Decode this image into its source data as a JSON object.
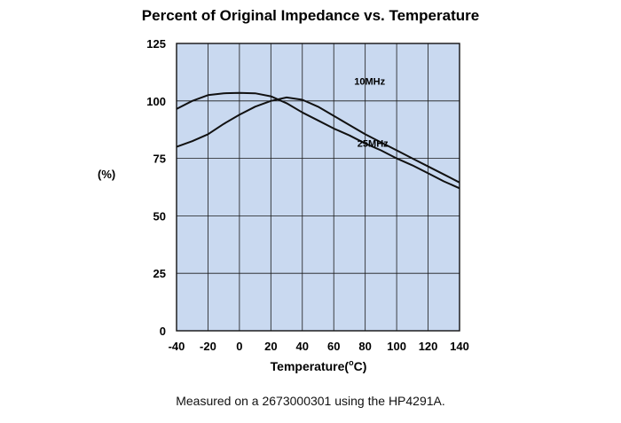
{
  "chart_data": {
    "type": "line",
    "title": "Percent of Original Impedance vs. Temperature",
    "ylabel": "(%)",
    "xlabel": "Temperature(",
    "xlabel_sup": "o",
    "xlabel_unit": "C)",
    "xlim": [
      -40,
      140
    ],
    "ylim": [
      0,
      125
    ],
    "xticks": [
      -40,
      -20,
      0,
      20,
      40,
      60,
      80,
      100,
      120,
      140
    ],
    "yticks": [
      0,
      25,
      50,
      75,
      100,
      125
    ],
    "grid": true,
    "plot_background": "#c9d9f0",
    "series": [
      {
        "name": "10MHz",
        "label_at": [
          73,
          107
        ],
        "x": [
          -40,
          -30,
          -20,
          -10,
          0,
          10,
          20,
          30,
          40,
          50,
          60,
          70,
          80,
          90,
          100,
          110,
          120,
          130,
          140
        ],
        "y": [
          96.5,
          100,
          102.5,
          103.3,
          103.5,
          103.3,
          102,
          99,
          95,
          91.5,
          88,
          85,
          81.5,
          78.5,
          75,
          72,
          68.5,
          65,
          62
        ]
      },
      {
        "name": "25MHz",
        "label_at": [
          75,
          80
        ],
        "x": [
          -40,
          -30,
          -20,
          -10,
          0,
          10,
          20,
          30,
          40,
          50,
          60,
          70,
          80,
          90,
          100,
          110,
          120,
          130,
          140
        ],
        "y": [
          80,
          82.5,
          85.5,
          90,
          94,
          97.5,
          100,
          101.5,
          100.5,
          97.5,
          93.5,
          89.5,
          85.5,
          82,
          78.5,
          75,
          71.5,
          68,
          64.5
        ]
      }
    ]
  },
  "note": "Measured on a 2673000301 using the HP4291A."
}
